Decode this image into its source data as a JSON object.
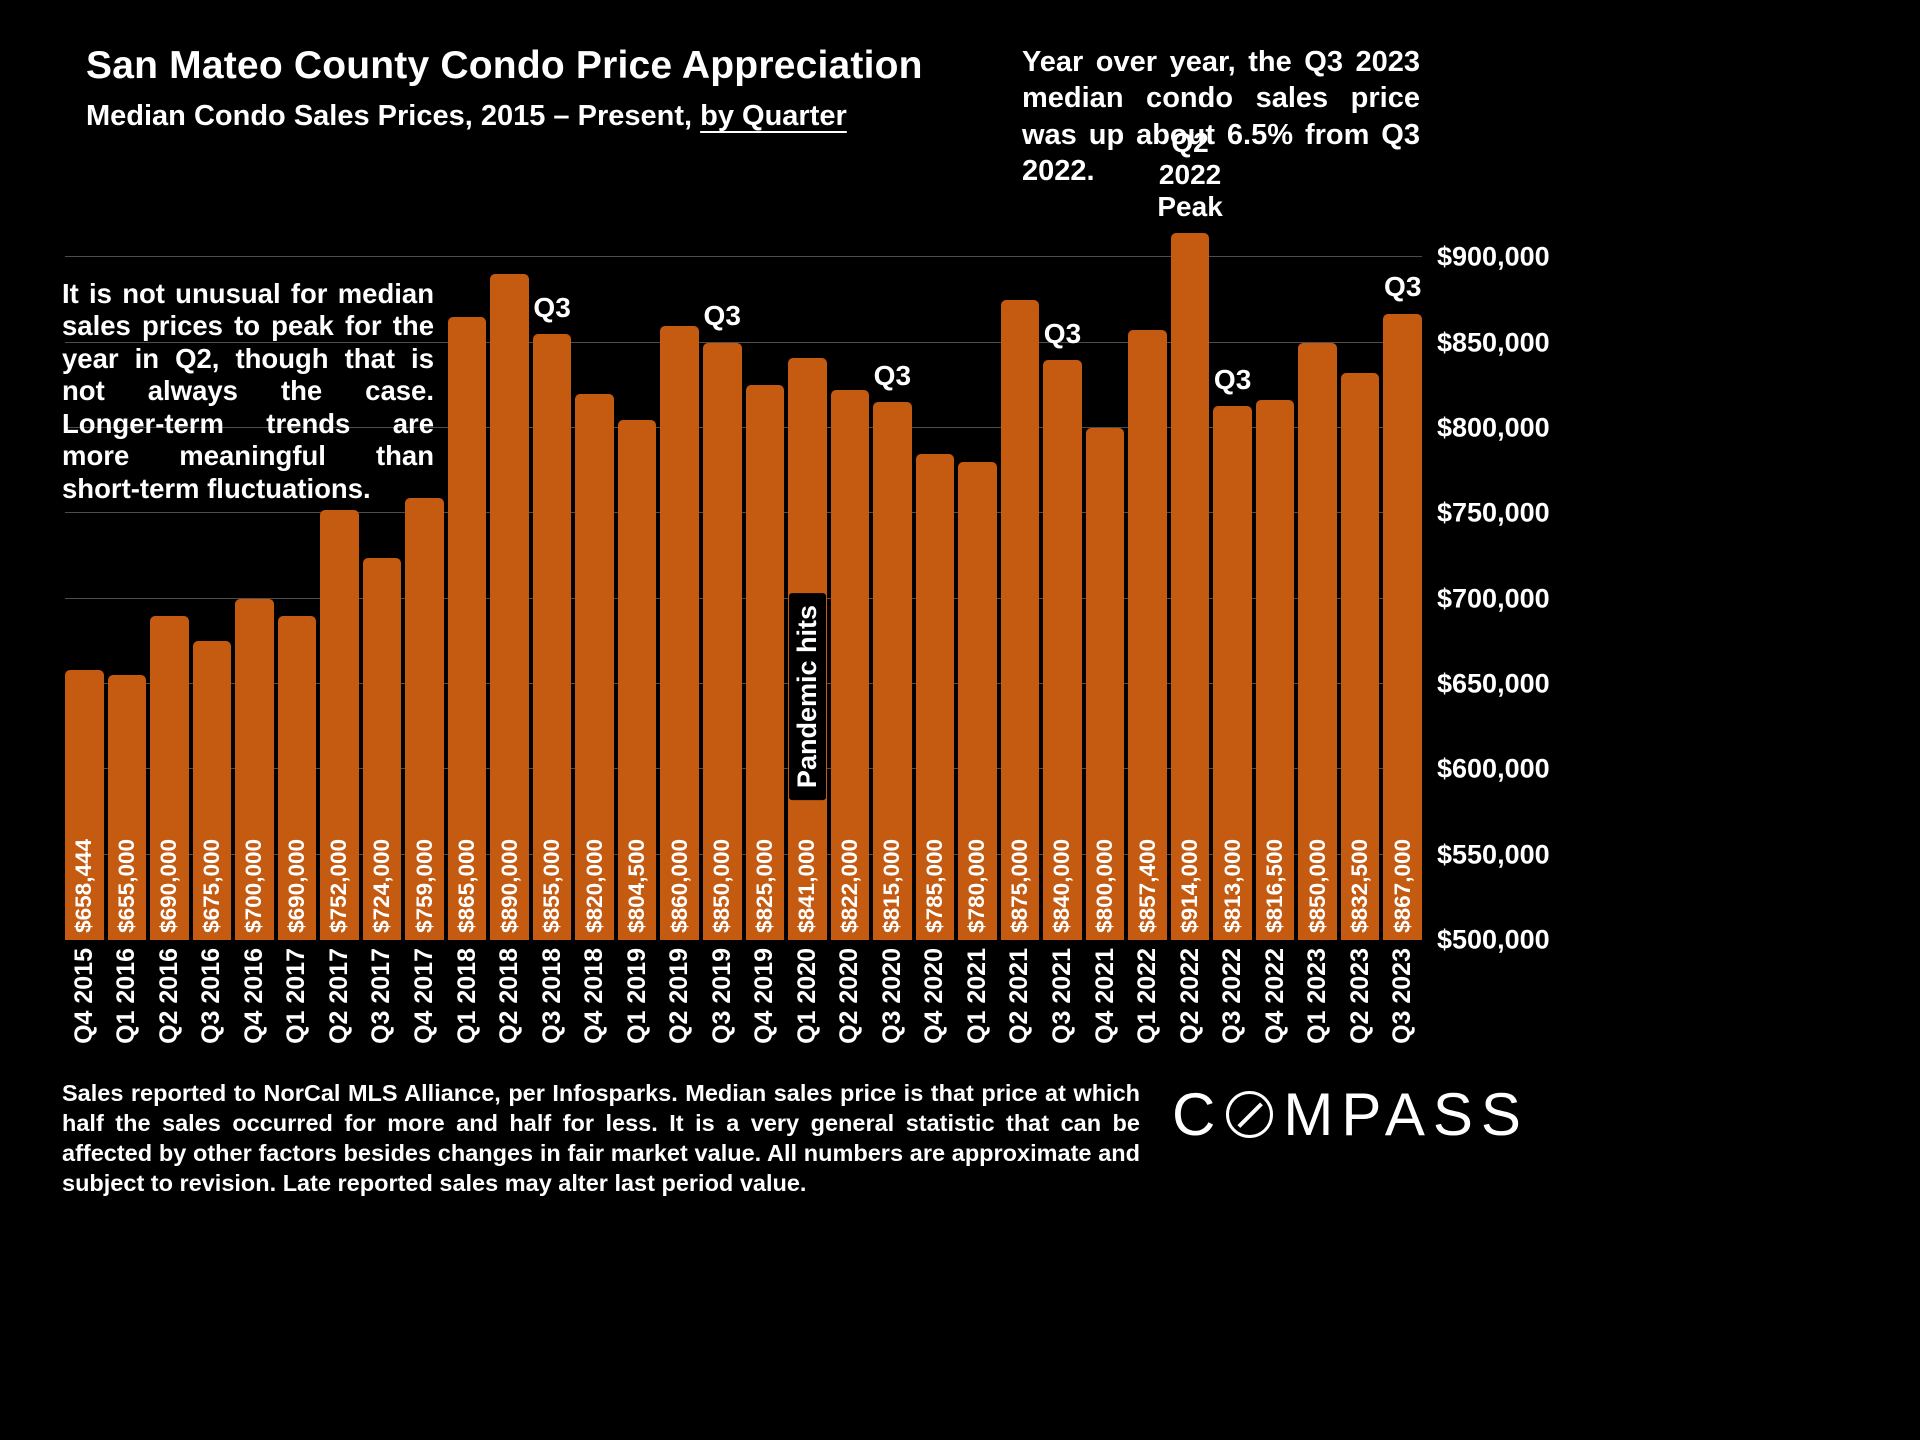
{
  "header": {
    "title": "San Mateo County Condo Price Appreciation",
    "subtitle_prefix": "Median Condo Sales Prices, 2015 – Present, ",
    "subtitle_underlined": "by Quarter",
    "yoy_note": "Year over year, the Q3 2023 median condo sales price was up about 6.5% from Q3 2022."
  },
  "notes": {
    "left_note": "It is not unusual for median sales prices to peak for the year in Q2, though that is not always the case. Longer-term trends are more meaningful than short-term fluctuations."
  },
  "chart_data": {
    "type": "bar",
    "title": "San Mateo County Condo Price Appreciation",
    "subtitle": "Median Condo Sales Prices, 2015 – Present, by Quarter",
    "xlabel": "",
    "ylabel": "",
    "grid": true,
    "bar_color": "#C55A11",
    "baseline_value": 500000,
    "ymax_render": 916000,
    "ylim": [
      500000,
      916000
    ],
    "y_tick_interval": 50000,
    "y_ticks": [
      {
        "label": "$900,000",
        "value": 900000
      },
      {
        "label": "$850,000",
        "value": 850000
      },
      {
        "label": "$800,000",
        "value": 800000
      },
      {
        "label": "$750,000",
        "value": 750000
      },
      {
        "label": "$700,000",
        "value": 700000
      },
      {
        "label": "$650,000",
        "value": 650000
      },
      {
        "label": "$600,000",
        "value": 600000
      },
      {
        "label": "$550,000",
        "value": 550000
      },
      {
        "label": "$500,000",
        "value": 500000
      }
    ],
    "bars": [
      {
        "category": "Q4 2015",
        "value": 658444,
        "label": "$658,444"
      },
      {
        "category": "Q1 2016",
        "value": 655000,
        "label": "$655,000"
      },
      {
        "category": "Q2 2016",
        "value": 690000,
        "label": "$690,000"
      },
      {
        "category": "Q3 2016",
        "value": 675000,
        "label": "$675,000"
      },
      {
        "category": "Q4 2016",
        "value": 700000,
        "label": "$700,000"
      },
      {
        "category": "Q1 2017",
        "value": 690000,
        "label": "$690,000"
      },
      {
        "category": "Q2 2017",
        "value": 752000,
        "label": "$752,000"
      },
      {
        "category": "Q3 2017",
        "value": 724000,
        "label": "$724,000"
      },
      {
        "category": "Q4 2017",
        "value": 759000,
        "label": "$759,000"
      },
      {
        "category": "Q1 2018",
        "value": 865000,
        "label": "$865,000"
      },
      {
        "category": "Q2 2018",
        "value": 890000,
        "label": "$890,000"
      },
      {
        "category": "Q3 2018",
        "value": 855000,
        "label": "$855,000",
        "top_label": "Q3"
      },
      {
        "category": "Q4 2018",
        "value": 820000,
        "label": "$820,000"
      },
      {
        "category": "Q1 2019",
        "value": 804500,
        "label": "$804,500"
      },
      {
        "category": "Q2 2019",
        "value": 860000,
        "label": "$860,000"
      },
      {
        "category": "Q3 2019",
        "value": 850000,
        "label": "$850,000",
        "top_label": "Q3"
      },
      {
        "category": "Q4 2019",
        "value": 825000,
        "label": "$825,000"
      },
      {
        "category": "Q1 2020",
        "value": 841000,
        "label": "$841,000",
        "overlay": "Pandemic hits"
      },
      {
        "category": "Q2 2020",
        "value": 822000,
        "label": "$822,000"
      },
      {
        "category": "Q3 2020",
        "value": 815000,
        "label": "$815,000",
        "top_label": "Q3"
      },
      {
        "category": "Q4 2020",
        "value": 785000,
        "label": "$785,000"
      },
      {
        "category": "Q1 2021",
        "value": 780000,
        "label": "$780,000"
      },
      {
        "category": "Q2 2021",
        "value": 875000,
        "label": "$875,000"
      },
      {
        "category": "Q3 2021",
        "value": 840000,
        "label": "$840,000",
        "top_label": "Q3"
      },
      {
        "category": "Q4 2021",
        "value": 800000,
        "label": "$800,000"
      },
      {
        "category": "Q1 2022",
        "value": 857400,
        "label": "$857,400"
      },
      {
        "category": "Q2 2022",
        "value": 914000,
        "label": "$914,000",
        "top_label": "Q2 2022\nPeak"
      },
      {
        "category": "Q3 2022",
        "value": 813000,
        "label": "$813,000",
        "top_label": "Q3"
      },
      {
        "category": "Q4 2022",
        "value": 816500,
        "label": "$816,500"
      },
      {
        "category": "Q1 2023",
        "value": 850000,
        "label": "$850,000"
      },
      {
        "category": "Q2 2023",
        "value": 832500,
        "label": "$832,500"
      },
      {
        "category": "Q3 2023",
        "value": 867000,
        "label": "$867,000",
        "top_label": "Q3"
      }
    ]
  },
  "footer": {
    "disclaimer": "Sales reported to NorCal MLS Alliance, per Infosparks. Median sales price is that price at which half the sales occurred for more and half for less. It is a very general statistic that can be affected by other factors besides changes in fair market value. All numbers are approximate and subject to revision. Late reported sales may alter last period value.",
    "logo_text": "COMPASS",
    "logo_c": "C",
    "logo_rest": "MPASS"
  }
}
